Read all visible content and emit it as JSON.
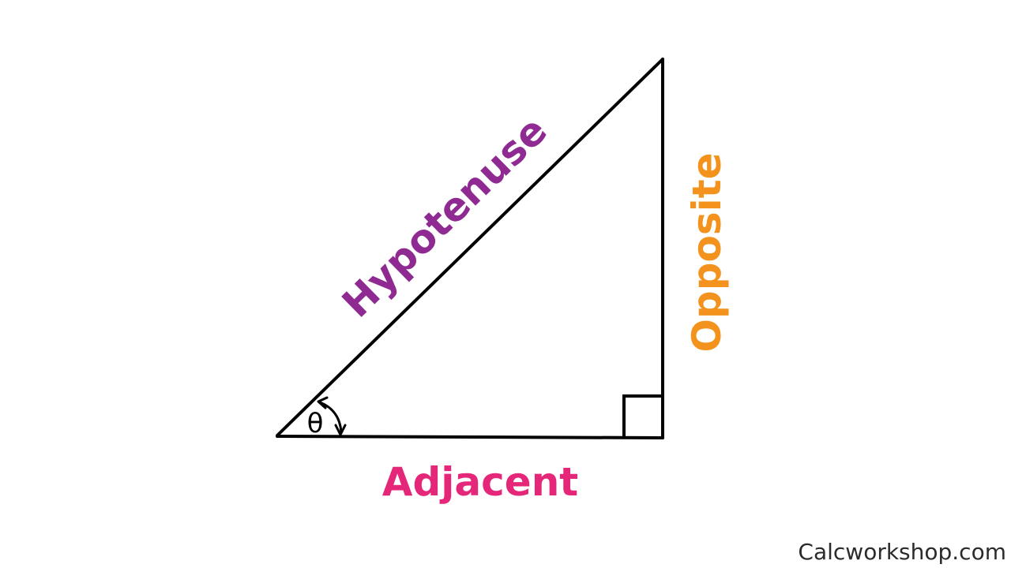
{
  "diagram": {
    "labels": {
      "hypotenuse": "Hypotenuse",
      "opposite": "Opposite",
      "adjacent": "Adjacent",
      "angle": "θ"
    },
    "colors": {
      "hypotenuse": "#8e2a91",
      "opposite": "#f3921c",
      "adjacent": "#e5277a",
      "lines": "#000000"
    }
  },
  "watermark": "Calcworkshop.com"
}
